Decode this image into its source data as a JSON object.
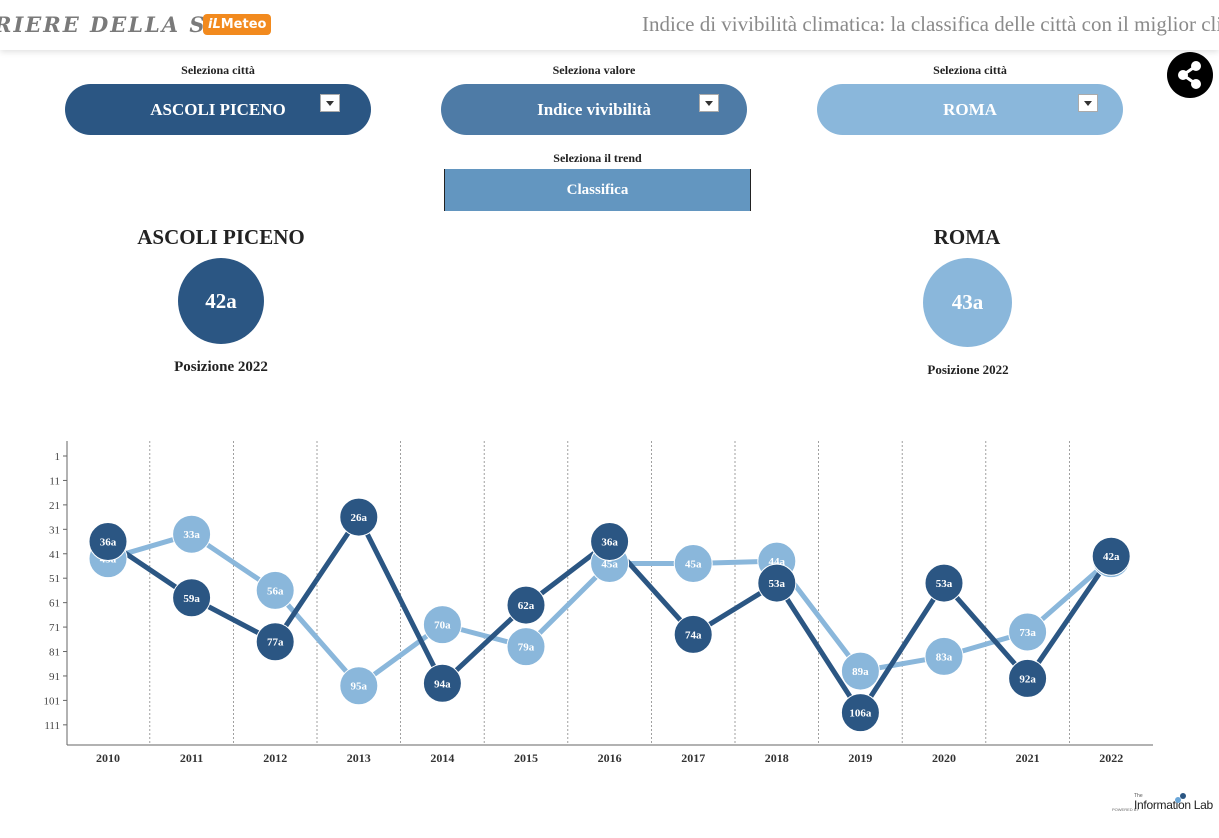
{
  "header": {
    "brand": "RIERE DELLA SERA",
    "meteo_prefix": "iL",
    "meteo_label": "Meteo",
    "headline": "Indice di vivibilità climatica: la classifica delle città con il miglior clima in Italia"
  },
  "controls": {
    "city1_label": "Seleziona città",
    "city1_value": "ASCOLI PICENO",
    "value_label": "Seleziona valore",
    "value_value": "Indice vivibilità",
    "city2_label": "Seleziona città",
    "city2_value": "ROMA",
    "trend_label": "Seleziona il trend",
    "trend_value": "Classifica"
  },
  "share_icon": "share-icon",
  "summary": {
    "city1": {
      "name": "ASCOLI PICENO",
      "rank": "42a",
      "caption": "Posizione 2022"
    },
    "city2": {
      "name": "ROMA",
      "rank": "43a",
      "caption": "Posizione 2022"
    }
  },
  "colors": {
    "city1": "#2b5683",
    "city2": "#8ab7db",
    "pill_value": "#4e7ba6",
    "trend": "#6396c0"
  },
  "chart_data": {
    "type": "line",
    "x": [
      "2010",
      "2011",
      "2012",
      "2013",
      "2014",
      "2015",
      "2016",
      "2017",
      "2018",
      "2019",
      "2020",
      "2021",
      "2022"
    ],
    "y_ticks": [
      1,
      11,
      21,
      31,
      41,
      51,
      61,
      71,
      81,
      91,
      101,
      111
    ],
    "y_reversed": true,
    "series": [
      {
        "name": "ASCOLI PICENO",
        "values": [
          36,
          59,
          77,
          26,
          94,
          62,
          36,
          74,
          53,
          106,
          53,
          92,
          42
        ],
        "labels": [
          "36a",
          "59a",
          "77a",
          "26a",
          "94a",
          "62a",
          "36a",
          "74a",
          "53a",
          "106a",
          "53a",
          "92a",
          "42a"
        ]
      },
      {
        "name": "ROMA",
        "values": [
          43,
          33,
          56,
          95,
          70,
          79,
          45,
          45,
          44,
          89,
          83,
          73,
          43
        ],
        "labels": [
          "43a",
          "33a",
          "56a",
          "95a",
          "70a",
          "79a",
          "45a",
          "45a",
          "44a",
          "89a",
          "83a",
          "73a",
          "43a"
        ]
      }
    ]
  },
  "footer": {
    "powered": "POWERED BY",
    "the": "The",
    "name": "Information Lab"
  }
}
